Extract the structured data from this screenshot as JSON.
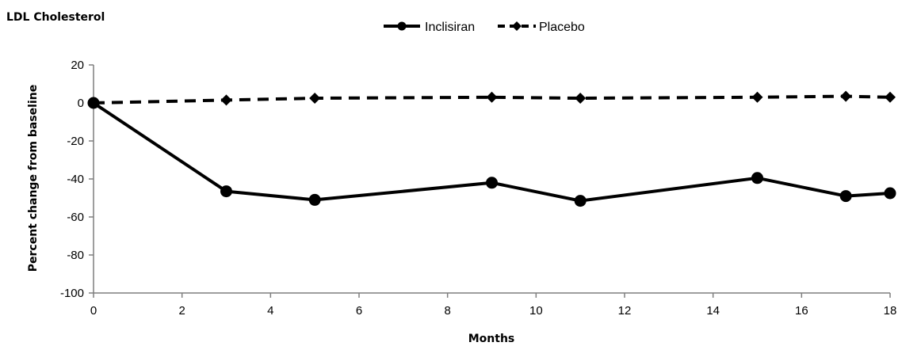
{
  "chart_data": {
    "type": "line",
    "title": "LDL Cholesterol",
    "xlabel": "Months",
    "ylabel": "Percent change from baseline",
    "xlim": [
      0,
      18
    ],
    "ylim": [
      -100,
      20
    ],
    "x_ticks": [
      0,
      2,
      4,
      6,
      8,
      10,
      12,
      14,
      16,
      18
    ],
    "y_ticks": [
      20,
      0,
      -20,
      -40,
      -60,
      -80,
      -100
    ],
    "grid": false,
    "legend_position": "top",
    "series": [
      {
        "name": "Inclisiran",
        "style": "solid",
        "marker": "circle",
        "color": "#000000",
        "x": [
          0,
          3,
          5,
          9,
          11,
          15,
          17,
          18
        ],
        "y": [
          0,
          -46.5,
          -51,
          -42,
          -51.5,
          -39.5,
          -49,
          -47.5
        ]
      },
      {
        "name": "Placebo",
        "style": "dashed",
        "marker": "diamond",
        "color": "#000000",
        "x": [
          0,
          3,
          5,
          9,
          11,
          15,
          17,
          18
        ],
        "y": [
          0,
          1.5,
          2.5,
          3,
          2.5,
          3,
          3.5,
          3
        ]
      }
    ]
  }
}
